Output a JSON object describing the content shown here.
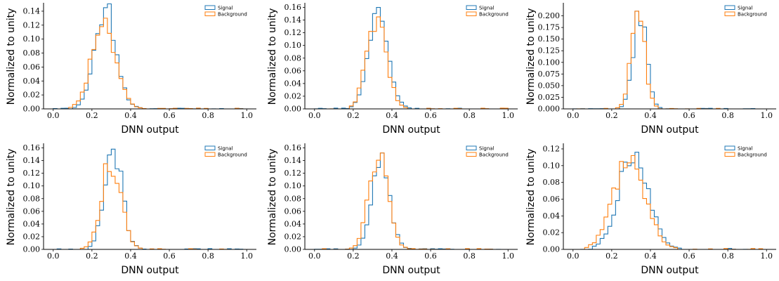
{
  "colors": {
    "signal": "#1f77b4",
    "background": "#ff7f0e"
  },
  "chart_data": [
    {
      "type": "step-histogram",
      "xlabel": "DNN output",
      "ylabel": "Normalized to unity",
      "xlim": [
        -0.05,
        1.05
      ],
      "ylim": [
        0,
        0.15
      ],
      "xticks": [
        0.0,
        0.2,
        0.4,
        0.6,
        0.8,
        1.0
      ],
      "xtick_labels": [
        "0.0",
        "0.2",
        "0.4",
        "0.6",
        "0.8",
        "1.0"
      ],
      "yticks": [
        0.0,
        0.02,
        0.04,
        0.06,
        0.08,
        0.1,
        0.12,
        0.14
      ],
      "ytick_labels": [
        "0.00",
        "0.02",
        "0.04",
        "0.06",
        "0.08",
        "0.10",
        "0.12",
        "0.14"
      ],
      "legend": [
        "Signal",
        "Background"
      ],
      "legend_loc": "upper right",
      "series": [
        {
          "name": "Signal",
          "peak": 0.145,
          "center": 0.27,
          "width": 0.055,
          "tail": 0.004,
          "seed": 11
        },
        {
          "name": "Background",
          "peak": 0.13,
          "center": 0.26,
          "width": 0.06,
          "tail": 0.003,
          "seed": 23
        }
      ]
    },
    {
      "type": "step-histogram",
      "xlabel": "DNN output",
      "ylabel": "Normalized to unity",
      "xlim": [
        -0.05,
        1.05
      ],
      "ylim": [
        0,
        0.165
      ],
      "xticks": [
        0.0,
        0.2,
        0.4,
        0.6,
        0.8,
        1.0
      ],
      "xtick_labels": [
        "0.0",
        "0.2",
        "0.4",
        "0.6",
        "0.8",
        "1.0"
      ],
      "yticks": [
        0.0,
        0.02,
        0.04,
        0.06,
        0.08,
        0.1,
        0.12,
        0.14,
        0.16
      ],
      "ytick_labels": [
        "0.00",
        "0.02",
        "0.04",
        "0.06",
        "0.08",
        "0.10",
        "0.12",
        "0.14",
        "0.16"
      ],
      "legend": [
        "Signal",
        "Background"
      ],
      "legend_loc": "upper right",
      "series": [
        {
          "name": "Signal",
          "peak": 0.16,
          "center": 0.33,
          "width": 0.05,
          "tail": 0.003,
          "seed": 31
        },
        {
          "name": "Background",
          "peak": 0.145,
          "center": 0.32,
          "width": 0.05,
          "tail": 0.002,
          "seed": 47
        }
      ]
    },
    {
      "type": "step-histogram",
      "xlabel": "DNN output",
      "ylabel": "Normalized to unity",
      "xlim": [
        -0.05,
        1.05
      ],
      "ylim": [
        0,
        0.225
      ],
      "xticks": [
        0.0,
        0.2,
        0.4,
        0.6,
        0.8,
        1.0
      ],
      "xtick_labels": [
        "0.0",
        "0.2",
        "0.4",
        "0.6",
        "0.8",
        "1.0"
      ],
      "yticks": [
        0.0,
        0.025,
        0.05,
        0.075,
        0.1,
        0.125,
        0.15,
        0.175,
        0.2
      ],
      "ytick_labels": [
        "0.000",
        "0.025",
        "0.050",
        "0.075",
        "0.100",
        "0.125",
        "0.150",
        "0.175",
        "0.200"
      ],
      "legend": [
        "Signal",
        "Background"
      ],
      "legend_loc": "upper right",
      "series": [
        {
          "name": "Signal",
          "peak": 0.21,
          "center": 0.345,
          "width": 0.035,
          "tail": 0.002,
          "seed": 53
        },
        {
          "name": "Background",
          "peak": 0.21,
          "center": 0.335,
          "width": 0.035,
          "tail": 0.002,
          "seed": 67
        }
      ]
    },
    {
      "type": "step-histogram",
      "xlabel": "DNN output",
      "ylabel": "Normalized to unity",
      "xlim": [
        -0.05,
        1.05
      ],
      "ylim": [
        0,
        0.165
      ],
      "xticks": [
        0.0,
        0.2,
        0.4,
        0.6,
        0.8,
        1.0
      ],
      "xtick_labels": [
        "0.0",
        "0.2",
        "0.4",
        "0.6",
        "0.8",
        "1.0"
      ],
      "yticks": [
        0.0,
        0.02,
        0.04,
        0.06,
        0.08,
        0.1,
        0.12,
        0.14,
        0.16
      ],
      "ytick_labels": [
        "0.00",
        "0.02",
        "0.04",
        "0.06",
        "0.08",
        "0.10",
        "0.12",
        "0.14",
        "0.16"
      ],
      "legend": [
        "Signal",
        "Background"
      ],
      "legend_loc": "upper right",
      "series": [
        {
          "name": "Signal",
          "peak": 0.158,
          "center": 0.31,
          "width": 0.045,
          "tail": 0.003,
          "seed": 71
        },
        {
          "name": "Background",
          "peak": 0.135,
          "center": 0.3,
          "width": 0.05,
          "tail": 0.002,
          "seed": 83
        }
      ]
    },
    {
      "type": "step-histogram",
      "xlabel": "DNN output",
      "ylabel": "Normalized to unity",
      "xlim": [
        -0.05,
        1.05
      ],
      "ylim": [
        0,
        0.165
      ],
      "xticks": [
        0.0,
        0.2,
        0.4,
        0.6,
        0.8,
        1.0
      ],
      "xtick_labels": [
        "0.0",
        "0.2",
        "0.4",
        "0.6",
        "0.8",
        "1.0"
      ],
      "yticks": [
        0.0,
        0.02,
        0.04,
        0.06,
        0.08,
        0.1,
        0.12,
        0.14,
        0.16
      ],
      "ytick_labels": [
        "0.00",
        "0.02",
        "0.04",
        "0.06",
        "0.08",
        "0.10",
        "0.12",
        "0.14",
        "0.16"
      ],
      "legend": [
        "Signal",
        "Background"
      ],
      "legend_loc": "upper right",
      "series": [
        {
          "name": "Signal",
          "peak": 0.152,
          "center": 0.34,
          "width": 0.045,
          "tail": 0.003,
          "seed": 97
        },
        {
          "name": "Background",
          "peak": 0.152,
          "center": 0.33,
          "width": 0.048,
          "tail": 0.003,
          "seed": 101
        }
      ]
    },
    {
      "type": "step-histogram",
      "xlabel": "DNN output",
      "ylabel": "Normalized to unity",
      "xlim": [
        -0.05,
        1.05
      ],
      "ylim": [
        0,
        0.125
      ],
      "xticks": [
        0.0,
        0.2,
        0.4,
        0.6,
        0.8,
        1.0
      ],
      "xtick_labels": [
        "0.0",
        "0.2",
        "0.4",
        "0.6",
        "0.8",
        "1.0"
      ],
      "yticks": [
        0.0,
        0.02,
        0.04,
        0.06,
        0.08,
        0.1,
        0.12
      ],
      "ytick_labels": [
        "0.00",
        "0.02",
        "0.04",
        "0.06",
        "0.08",
        "0.10",
        "0.12"
      ],
      "legend": [
        "Signal",
        "Background"
      ],
      "legend_loc": "upper right",
      "series": [
        {
          "name": "Signal",
          "peak": 0.116,
          "center": 0.31,
          "width": 0.075,
          "tail": 0.005,
          "seed": 113
        },
        {
          "name": "Background",
          "peak": 0.112,
          "center": 0.29,
          "width": 0.08,
          "tail": 0.006,
          "seed": 127
        }
      ]
    }
  ]
}
